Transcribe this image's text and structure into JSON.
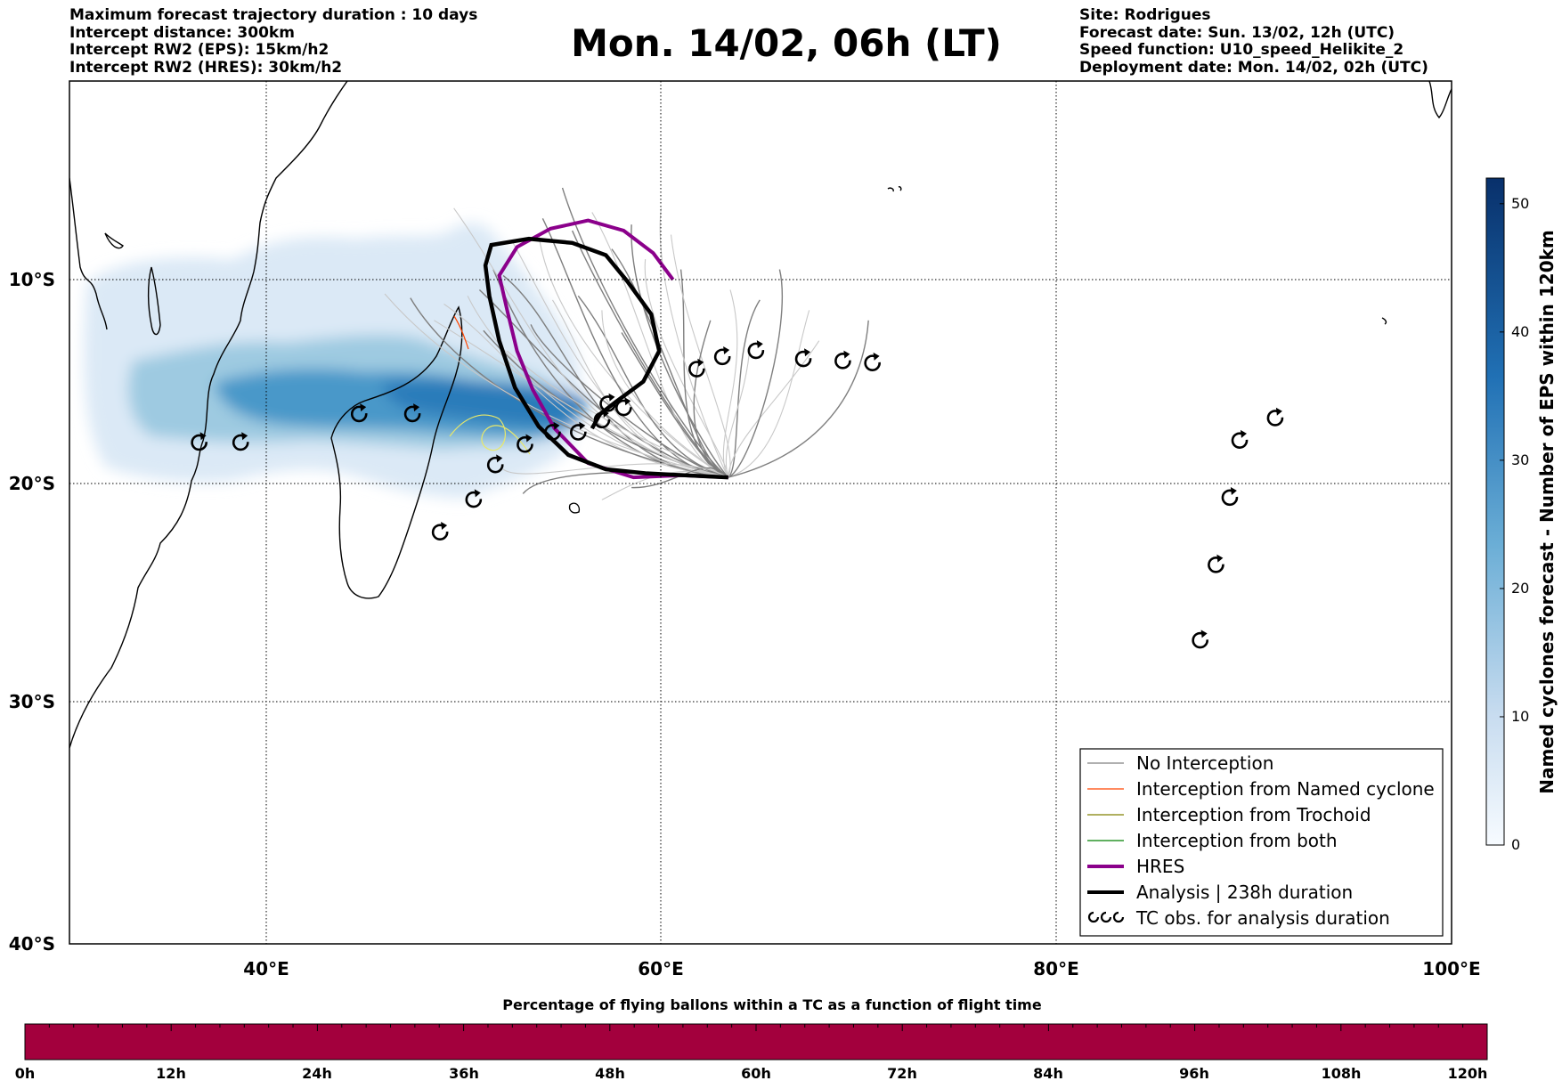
{
  "header_left": [
    "Maximum forecast trajectory duration : 10 days",
    "Intercept distance: 300km",
    "Intercept RW2 (EPS):  15km/h2",
    "Intercept RW2 (HRES): 30km/h2"
  ],
  "header_right": [
    "Site: Rodrigues",
    "Forecast date: Sun. 13/02, 12h (UTC)",
    "Speed function: U10_speed_Helikite_2",
    "Deployment date: Mon. 14/02, 02h (UTC)"
  ],
  "title": "Mon. 14/02, 06h (LT)",
  "map": {
    "lon_ticks": [
      "40°E",
      "60°E",
      "80°E",
      "100°E"
    ],
    "lat_ticks": [
      "10°S",
      "20°S",
      "30°S",
      "40°S"
    ],
    "tc_obs": [
      {
        "lon": 36.6,
        "lat": 18.0
      },
      {
        "lon": 38.7,
        "lat": 18.0
      },
      {
        "lon": 44.7,
        "lat": 16.6
      },
      {
        "lon": 47.4,
        "lat": 16.6
      },
      {
        "lon": 48.8,
        "lat": 22.4
      },
      {
        "lon": 50.5,
        "lat": 20.8
      },
      {
        "lon": 51.6,
        "lat": 19.1
      },
      {
        "lon": 53.1,
        "lat": 18.1
      },
      {
        "lon": 54.5,
        "lat": 17.5
      },
      {
        "lon": 55.8,
        "lat": 17.5
      },
      {
        "lon": 57.0,
        "lat": 16.9
      },
      {
        "lon": 57.3,
        "lat": 16.1
      },
      {
        "lon": 58.1,
        "lat": 16.3
      },
      {
        "lon": 61.8,
        "lat": 14.4
      },
      {
        "lon": 63.1,
        "lat": 13.8
      },
      {
        "lon": 64.8,
        "lat": 13.5
      },
      {
        "lon": 67.2,
        "lat": 13.9
      },
      {
        "lon": 69.2,
        "lat": 14.0
      },
      {
        "lon": 70.7,
        "lat": 14.1
      },
      {
        "lon": 91.1,
        "lat": 16.8
      },
      {
        "lon": 89.3,
        "lat": 17.9
      },
      {
        "lon": 88.8,
        "lat": 20.7
      },
      {
        "lon": 88.1,
        "lat": 24.0
      },
      {
        "lon": 87.3,
        "lat": 27.7
      }
    ],
    "hres_track": [
      [
        63.4,
        19.7
      ],
      [
        61.0,
        19.6
      ],
      [
        58.6,
        19.7
      ],
      [
        56.3,
        19.0
      ],
      [
        54.6,
        17.3
      ],
      [
        53.5,
        15.4
      ],
      [
        52.7,
        13.5
      ],
      [
        52.2,
        11.5
      ],
      [
        51.8,
        9.8
      ],
      [
        52.7,
        8.4
      ],
      [
        54.4,
        7.5
      ],
      [
        56.3,
        7.1
      ],
      [
        58.1,
        7.6
      ],
      [
        59.6,
        8.7
      ],
      [
        60.6,
        10.0
      ]
    ],
    "analysis_track": [
      [
        63.4,
        19.7
      ],
      [
        61.2,
        19.6
      ],
      [
        59.2,
        19.5
      ],
      [
        57.2,
        19.3
      ],
      [
        55.3,
        18.6
      ],
      [
        53.8,
        17.2
      ],
      [
        52.6,
        15.3
      ],
      [
        51.8,
        13.0
      ],
      [
        51.3,
        10.8
      ],
      [
        51.1,
        9.3
      ],
      [
        51.4,
        8.3
      ],
      [
        53.3,
        8.0
      ],
      [
        55.5,
        8.2
      ],
      [
        57.2,
        8.8
      ],
      [
        58.3,
        10.1
      ],
      [
        59.5,
        11.7
      ],
      [
        59.9,
        13.5
      ],
      [
        59.1,
        15.0
      ],
      [
        57.7,
        16.0
      ],
      [
        56.9,
        16.6
      ],
      [
        56.5,
        17.3
      ]
    ]
  },
  "colorbar": {
    "label": "Named cyclones forecast - Number of EPS within 120km",
    "ticks": [
      "0",
      "10",
      "20",
      "30",
      "40",
      "50"
    ],
    "max": 52
  },
  "legend": {
    "items": [
      {
        "label": "No Interception",
        "color": "#808080"
      },
      {
        "label": "Interception from Named cyclone",
        "color": "#ff4500"
      },
      {
        "label": "Interception from Trochoid",
        "color": "#808000"
      },
      {
        "label": "Interception from both",
        "color": "#008000"
      },
      {
        "label": "HRES",
        "color": "#8b008b"
      },
      {
        "label": "Analysis | 238h duration",
        "color": "#000000"
      },
      {
        "label": "TC obs. for analysis duration",
        "color": "#000000"
      }
    ]
  },
  "time_bar": {
    "title": "Percentage of flying ballons within a TC as a function of flight time",
    "ticks": [
      "0h",
      "12h",
      "24h",
      "36h",
      "48h",
      "60h",
      "72h",
      "84h",
      "96h",
      "108h",
      "120h"
    ],
    "color": "#a3003d"
  }
}
